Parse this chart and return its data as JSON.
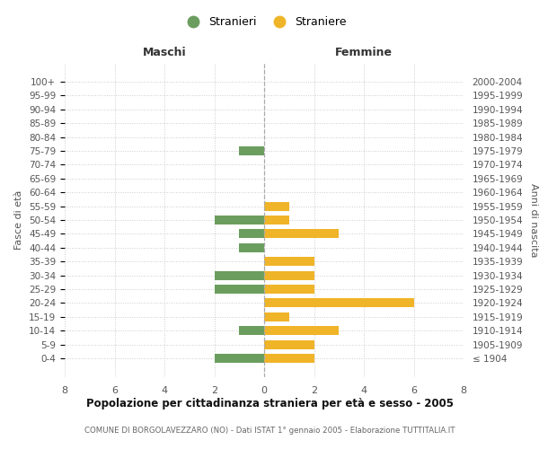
{
  "age_groups": [
    "100+",
    "95-99",
    "90-94",
    "85-89",
    "80-84",
    "75-79",
    "70-74",
    "65-69",
    "60-64",
    "55-59",
    "50-54",
    "45-49",
    "40-44",
    "35-39",
    "30-34",
    "25-29",
    "20-24",
    "15-19",
    "10-14",
    "5-9",
    "0-4"
  ],
  "birth_years": [
    "≤ 1904",
    "1905-1909",
    "1910-1914",
    "1915-1919",
    "1920-1924",
    "1925-1929",
    "1930-1934",
    "1935-1939",
    "1940-1944",
    "1945-1949",
    "1950-1954",
    "1955-1959",
    "1960-1964",
    "1965-1969",
    "1970-1974",
    "1975-1979",
    "1980-1984",
    "1985-1989",
    "1990-1994",
    "1995-1999",
    "2000-2004"
  ],
  "maschi": [
    0,
    0,
    0,
    0,
    0,
    1,
    0,
    0,
    0,
    0,
    2,
    1,
    1,
    0,
    2,
    2,
    0,
    0,
    1,
    0,
    2
  ],
  "femmine": [
    0,
    0,
    0,
    0,
    0,
    0,
    0,
    0,
    0,
    1,
    1,
    3,
    0,
    2,
    2,
    2,
    6,
    1,
    3,
    2,
    2
  ],
  "color_maschi": "#6b9e5e",
  "color_femmine": "#f0b429",
  "title_main": "Popolazione per cittadinanza straniera per età e sesso - 2005",
  "title_sub": "COMUNE DI BORGOLAVEZZARO (NO) - Dati ISTAT 1° gennaio 2005 - Elaborazione TUTTITALIA.IT",
  "label_maschi_header": "Maschi",
  "label_femmine_header": "Femmine",
  "ylabel_left": "Fasce di età",
  "ylabel_right": "Anni di nascita",
  "legend_maschi": "Stranieri",
  "legend_femmine": "Straniere",
  "xlim": 8,
  "background_color": "#ffffff",
  "grid_color": "#cccccc"
}
